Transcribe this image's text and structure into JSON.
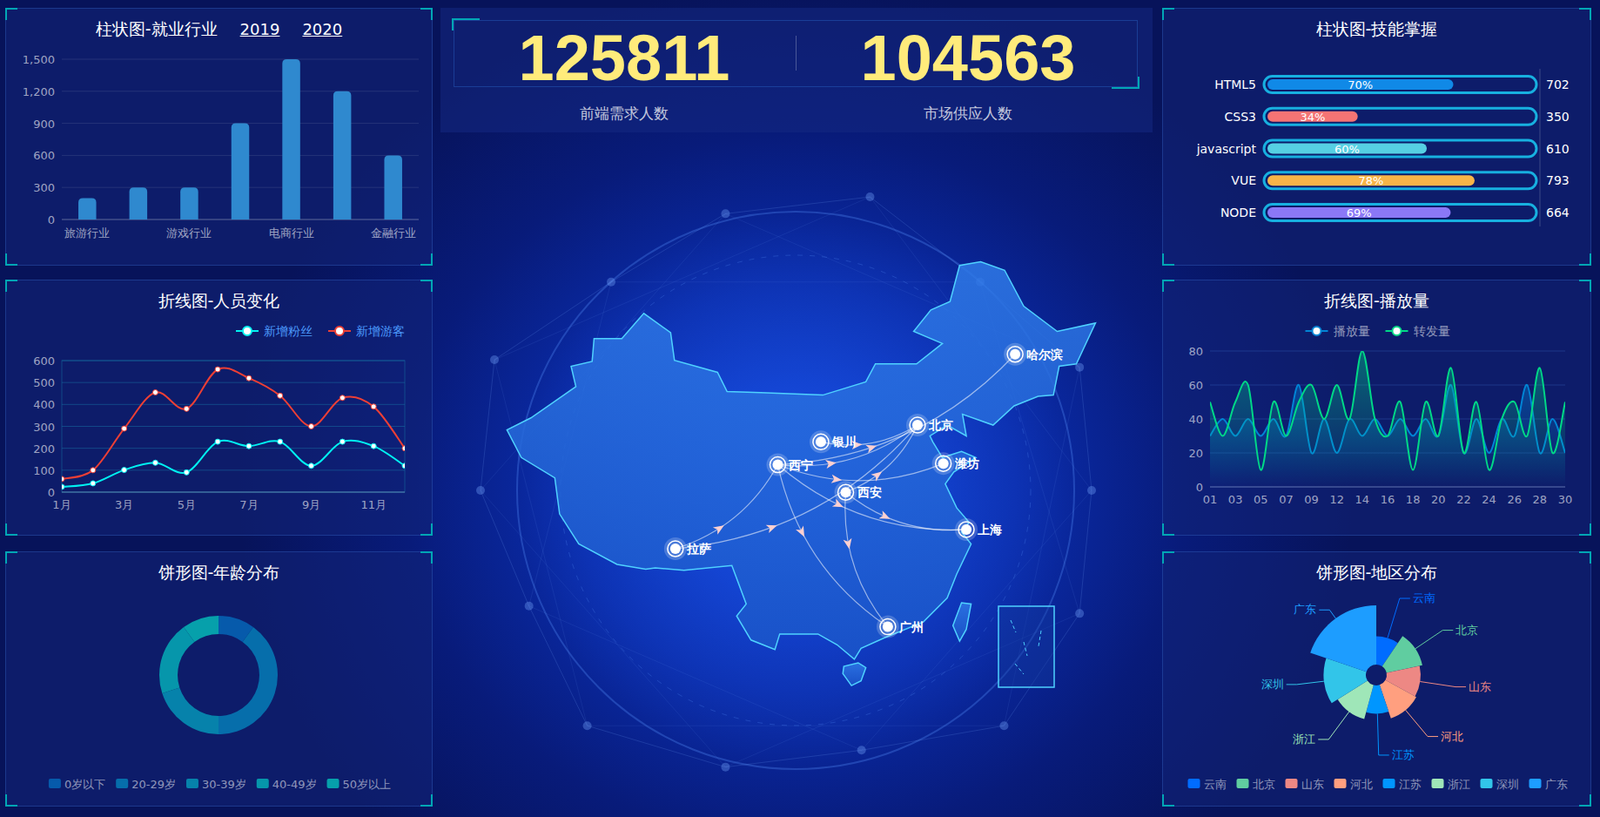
{
  "kpis": [
    {
      "value": 125811,
      "label": "前端需求人数"
    },
    {
      "value": 104563,
      "label": "市场供应人数"
    }
  ],
  "map": {
    "cities": [
      {
        "name": "哈尔滨",
        "lon": 126.6,
        "lat": 45.8
      },
      {
        "name": "北京",
        "lon": 116.4,
        "lat": 39.9
      },
      {
        "name": "银川",
        "lon": 106.3,
        "lat": 38.5
      },
      {
        "name": "西宁",
        "lon": 101.8,
        "lat": 36.6
      },
      {
        "name": "潍坊",
        "lon": 119.1,
        "lat": 36.7
      },
      {
        "name": "西安",
        "lon": 108.9,
        "lat": 34.3
      },
      {
        "name": "上海",
        "lon": 121.5,
        "lat": 31.2
      },
      {
        "name": "拉萨",
        "lon": 91.1,
        "lat": 29.6
      },
      {
        "name": "广州",
        "lon": 113.3,
        "lat": 23.1
      }
    ],
    "routes": [
      [
        "西宁",
        "哈尔滨"
      ],
      [
        "西宁",
        "北京"
      ],
      [
        "西宁",
        "潍坊"
      ],
      [
        "西宁",
        "上海"
      ],
      [
        "西宁",
        "广州"
      ],
      [
        "拉萨",
        "西宁"
      ],
      [
        "拉萨",
        "北京"
      ],
      [
        "西安",
        "北京"
      ],
      [
        "西安",
        "上海"
      ],
      [
        "西安",
        "广州"
      ],
      [
        "银川",
        "北京"
      ]
    ]
  },
  "chart_data": [
    {
      "type": "bar",
      "title": "柱状图-就业行业",
      "annotations": [
        "2019",
        "2020"
      ],
      "categories": [
        "旅游行业",
        null,
        "游戏行业",
        null,
        "电商行业",
        null,
        "金融行业"
      ],
      "values": [
        200,
        300,
        300,
        900,
        1500,
        1200,
        600
      ],
      "color": "#2f89cf",
      "ylim": [
        0,
        1500
      ],
      "yticks": [
        0,
        300,
        600,
        900,
        {
          "value": 1200,
          "label": "1,200"
        },
        {
          "value": 1500,
          "label": "1,500"
        }
      ],
      "grid": true
    },
    {
      "type": "line",
      "title": "折线图-人员变化",
      "categories": [
        "1月",
        null,
        "3月",
        null,
        "5月",
        null,
        "7月",
        null,
        "9月",
        null,
        "11月",
        null
      ],
      "series": [
        {
          "name": "新增粉丝",
          "color": "#00f2f1",
          "values": [
            24,
            40,
            101,
            134,
            90,
            230,
            210,
            230,
            120,
            230,
            210,
            120
          ]
        },
        {
          "name": "新增游客",
          "color": "#ed3f35",
          "values": [
            60,
            100,
            290,
            455,
            380,
            560,
            520,
            440,
            300,
            430,
            390,
            200
          ]
        }
      ],
      "ylim": [
        0,
        600
      ],
      "yticks": [
        0,
        100,
        200,
        300,
        400,
        500,
        600
      ],
      "grid": true,
      "legend": "top-right",
      "marker": "circle"
    },
    {
      "type": "pie",
      "title": "饼形图-年龄分布",
      "categories": [
        "0岁以下",
        "20-29岁",
        "30-39岁",
        "40-49岁",
        "50岁以上"
      ],
      "values": [
        1,
        4,
        2,
        2,
        1
      ],
      "colors": [
        "#065aab",
        "#066eab",
        "#0682ab",
        "#0696ab",
        "#06a0ab"
      ],
      "legend": "bottom"
    },
    {
      "type": "bar",
      "orientation": "horizontal",
      "title": "柱状图-技能掌握",
      "categories": [
        "HTML5",
        "CSS3",
        "javascript",
        "VUE",
        "NODE"
      ],
      "values": [
        70,
        34,
        60,
        78,
        69
      ],
      "value_labels": [
        "70%",
        "34%",
        "60%",
        "78%",
        "69%"
      ],
      "y2_categories": [
        702,
        350,
        610,
        793,
        664
      ],
      "colors": [
        "#1089e7",
        "#f57474",
        "#56d0e3",
        "#f8b448",
        "#8b78f6"
      ],
      "xlim": [
        0,
        100
      ],
      "data_labels": true,
      "tick_labels": "y"
    },
    {
      "type": "area",
      "title": "折线图-播放量",
      "categories": [
        "01",
        null,
        "03",
        null,
        "05",
        null,
        "07",
        null,
        "09",
        null,
        "12",
        null,
        "14",
        null,
        "16",
        null,
        "18",
        null,
        "20",
        null,
        "22",
        null,
        "24",
        null,
        "26",
        null,
        "28",
        null,
        "30"
      ],
      "series": [
        {
          "name": "播放量",
          "color": "#0184d5",
          "values": [
            30,
            40,
            30,
            40,
            30,
            40,
            30,
            60,
            20,
            40,
            20,
            40,
            30,
            40,
            30,
            40,
            30,
            40,
            30,
            60,
            20,
            40,
            20,
            40,
            30,
            60,
            20,
            40,
            20
          ]
        },
        {
          "name": "转发量",
          "color": "#00d887",
          "values": [
            50,
            30,
            50,
            60,
            10,
            50,
            30,
            50,
            60,
            40,
            60,
            40,
            80,
            40,
            30,
            50,
            10,
            50,
            30,
            70,
            20,
            50,
            10,
            40,
            50,
            30,
            70,
            20,
            50
          ]
        }
      ],
      "ylim": [
        0,
        80
      ],
      "yticks": [
        0,
        20,
        40,
        60,
        80
      ],
      "grid": true,
      "legend": "top",
      "marker": "none"
    },
    {
      "type": "rose",
      "title": "饼形图-地区分布",
      "categories": [
        "云南",
        "北京",
        "山东",
        "河北",
        "江苏",
        "浙江",
        "深圳",
        "广东"
      ],
      "values": [
        20,
        26,
        24,
        25,
        20,
        25,
        30,
        42
      ],
      "colors": [
        "#006cff",
        "#60cda0",
        "#ed8884",
        "#ff9f7f",
        "#0096ff",
        "#9fe6b8",
        "#32c5e9",
        "#1d9dff"
      ],
      "legend": "bottom"
    }
  ]
}
